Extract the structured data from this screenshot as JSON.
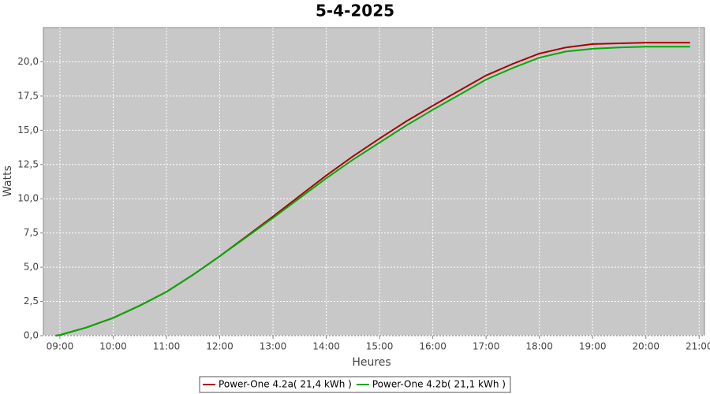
{
  "chart_data": {
    "type": "line",
    "title": "5-4-2025",
    "x_label": "Heures",
    "y_label": "Watts",
    "x": [
      8.92,
      9,
      9.5,
      10,
      10.5,
      11,
      11.5,
      12,
      12.5,
      13,
      13.5,
      14,
      14.5,
      15,
      15.5,
      16,
      16.5,
      17,
      17.5,
      18,
      18.5,
      19,
      19.5,
      20,
      20.5,
      20.83
    ],
    "series": [
      {
        "name": "Power-One 4.2a( 21,4 kWh )",
        "color": "#aa0000",
        "values": [
          0,
          0.05,
          0.6,
          1.3,
          2.2,
          3.2,
          4.45,
          5.8,
          7.25,
          8.7,
          10.2,
          11.7,
          13.1,
          14.4,
          15.65,
          16.8,
          17.9,
          19.0,
          19.85,
          20.6,
          21.05,
          21.3,
          21.35,
          21.4,
          21.4,
          21.4
        ]
      },
      {
        "name": "Power-One 4.2b( 21,1 kWh )",
        "color": "#00aa00",
        "values": [
          0,
          0.05,
          0.6,
          1.3,
          2.2,
          3.2,
          4.45,
          5.8,
          7.2,
          8.6,
          10.05,
          11.5,
          12.85,
          14.1,
          15.35,
          16.5,
          17.6,
          18.7,
          19.55,
          20.3,
          20.75,
          20.95,
          21.05,
          21.1,
          21.1,
          21.1
        ]
      }
    ],
    "xlim": [
      8.69,
      21.1
    ],
    "xticks": [
      {
        "value": 9,
        "label": "09:00"
      },
      {
        "value": 10,
        "label": "10:00"
      },
      {
        "value": 11,
        "label": "11:00"
      },
      {
        "value": 12,
        "label": "12:00"
      },
      {
        "value": 13,
        "label": "13:00"
      },
      {
        "value": 14,
        "label": "14:00"
      },
      {
        "value": 15,
        "label": "15:00"
      },
      {
        "value": 16,
        "label": "16:00"
      },
      {
        "value": 17,
        "label": "17:00"
      },
      {
        "value": 18,
        "label": "18:00"
      },
      {
        "value": 19,
        "label": "19:00"
      },
      {
        "value": 20,
        "label": "20:00"
      },
      {
        "value": 21,
        "label": "21:00"
      }
    ],
    "ylim": [
      0,
      22.5
    ],
    "yticks": [
      {
        "value": 0,
        "label": "0,0"
      },
      {
        "value": 2.5,
        "label": "2,5"
      },
      {
        "value": 5,
        "label": "5,0"
      },
      {
        "value": 7.5,
        "label": "7,5"
      },
      {
        "value": 10,
        "label": "10,0"
      },
      {
        "value": 12.5,
        "label": "12,5"
      },
      {
        "value": 15,
        "label": "15,0"
      },
      {
        "value": 17.5,
        "label": "17,5"
      },
      {
        "value": 20,
        "label": "20,0"
      }
    ],
    "grid": true,
    "legend": "bottom"
  }
}
